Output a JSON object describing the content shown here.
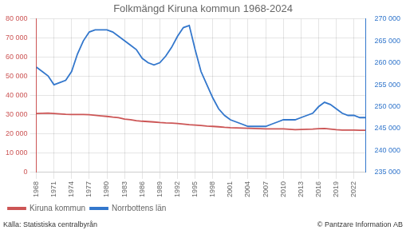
{
  "chart_data": {
    "type": "line",
    "title": "Folkmängd Kiruna kommun 1968-2024",
    "annotations": [
      "Källa: Statistiska centralbyrån",
      "© Pantzare Information AB"
    ],
    "x": [
      1968,
      1969,
      1970,
      1971,
      1972,
      1973,
      1974,
      1975,
      1976,
      1977,
      1978,
      1979,
      1980,
      1981,
      1982,
      1983,
      1984,
      1985,
      1986,
      1987,
      1988,
      1989,
      1990,
      1991,
      1992,
      1993,
      1994,
      1995,
      1996,
      1997,
      1998,
      1999,
      2000,
      2001,
      2002,
      2003,
      2004,
      2005,
      2006,
      2007,
      2008,
      2009,
      2010,
      2011,
      2012,
      2013,
      2014,
      2015,
      2016,
      2017,
      2018,
      2019,
      2020,
      2021,
      2022,
      2023,
      2024
    ],
    "series": [
      {
        "name": "Kiruna kommun",
        "color": "#cc5555",
        "axis": "y",
        "values": [
          30700,
          30800,
          30900,
          30700,
          30500,
          30300,
          30200,
          30200,
          30200,
          30100,
          29800,
          29500,
          29200,
          28800,
          28500,
          27800,
          27500,
          27000,
          26700,
          26500,
          26300,
          26000,
          25800,
          25700,
          25500,
          25200,
          24900,
          24700,
          24500,
          24200,
          24000,
          23800,
          23500,
          23300,
          23200,
          23100,
          23000,
          22900,
          22800,
          22700,
          22700,
          22700,
          22700,
          22500,
          22300,
          22400,
          22500,
          22600,
          22800,
          22900,
          22600,
          22300,
          22100,
          22100,
          22100,
          22000,
          22000
        ]
      },
      {
        "name": "Norrbottens län",
        "color": "#3377cc",
        "axis": "y2",
        "values": [
          259000,
          258000,
          257000,
          255000,
          255500,
          256000,
          258000,
          262000,
          265000,
          267000,
          267500,
          267500,
          267500,
          267000,
          266000,
          265000,
          264000,
          263000,
          261000,
          260000,
          259500,
          260000,
          261500,
          263500,
          266000,
          268000,
          268500,
          263000,
          258000,
          255000,
          252000,
          249500,
          248000,
          247000,
          246500,
          246000,
          245500,
          245500,
          245500,
          245500,
          246000,
          246500,
          247000,
          247000,
          247000,
          247500,
          248000,
          248500,
          250000,
          251000,
          250500,
          249500,
          248500,
          248000,
          248000,
          247500,
          247500
        ]
      }
    ],
    "xlim": [
      1968,
      2024
    ],
    "xticks": [
      1968,
      1971,
      1974,
      1977,
      1980,
      1983,
      1986,
      1989,
      1992,
      1995,
      1998,
      2001,
      2004,
      2007,
      2010,
      2013,
      2016,
      2019,
      2022
    ],
    "ylim": [
      0,
      80000
    ],
    "yticks": [
      0,
      {
        "value": 10000,
        "label": "10 000"
      },
      {
        "value": 20000,
        "label": "20 000"
      },
      {
        "value": 30000,
        "label": "30 000"
      },
      {
        "value": 40000,
        "label": "40 000"
      },
      {
        "value": 50000,
        "label": "50 000"
      },
      {
        "value": 60000,
        "label": "60 000"
      },
      {
        "value": 70000,
        "label": "70 000"
      },
      {
        "value": 80000,
        "label": "80 000"
      }
    ],
    "y2lim": [
      235000,
      270000
    ],
    "y2ticks": [
      {
        "value": 235000,
        "label": "235 000"
      },
      {
        "value": 240000,
        "label": "240 000"
      },
      {
        "value": 245000,
        "label": "245 000"
      },
      {
        "value": 250000,
        "label": "250 000"
      },
      {
        "value": 255000,
        "label": "255 000"
      },
      {
        "value": 260000,
        "label": "260 000"
      },
      {
        "value": 265000,
        "label": "265 000"
      },
      {
        "value": 270000,
        "label": "270 000"
      }
    ],
    "grid": true,
    "legend": "lower left"
  }
}
